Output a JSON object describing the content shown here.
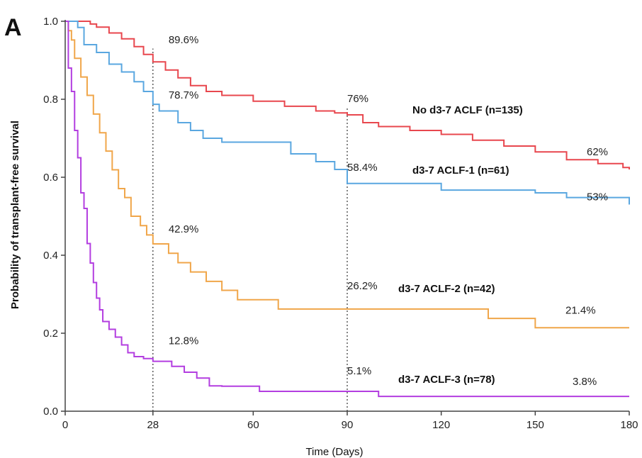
{
  "chart_data": {
    "type": "line",
    "panel_label": "A",
    "xlabel": "Time (Days)",
    "ylabel": "Probability of transplant-free survival",
    "xlim": [
      0,
      180
    ],
    "ylim": [
      0,
      1.0
    ],
    "x_ticks": [
      0,
      28,
      60,
      90,
      120,
      150,
      180
    ],
    "x_tick_labels": [
      "0",
      "28",
      "60",
      "90",
      "120",
      "150",
      "180"
    ],
    "y_ticks": [
      0,
      0.2,
      0.4,
      0.6,
      0.8,
      1.0
    ],
    "y_tick_labels": [
      "0.0",
      "0.2",
      "0.4",
      "0.6",
      "0.8",
      "1.0"
    ],
    "reference_lines_x": [
      28,
      90
    ],
    "series": [
      {
        "name": "No d3-7 ACLF (n=135)",
        "color": "#e8474e",
        "x": [
          0,
          8,
          10,
          14,
          18,
          22,
          25,
          28,
          32,
          36,
          40,
          45,
          50,
          60,
          70,
          80,
          86,
          90,
          95,
          100,
          110,
          120,
          130,
          140,
          150,
          160,
          170,
          178,
          180
        ],
        "y": [
          1.0,
          0.993,
          0.985,
          0.97,
          0.955,
          0.935,
          0.915,
          0.896,
          0.875,
          0.855,
          0.835,
          0.82,
          0.81,
          0.795,
          0.782,
          0.77,
          0.765,
          0.76,
          0.74,
          0.73,
          0.72,
          0.71,
          0.695,
          0.68,
          0.665,
          0.645,
          0.635,
          0.625,
          0.62
        ]
      },
      {
        "name": "d3-7 ACLF-1 (n=61)",
        "color": "#5aa7e0",
        "x": [
          0,
          4,
          6,
          10,
          14,
          18,
          22,
          25,
          28,
          30,
          36,
          40,
          44,
          50,
          60,
          68,
          72,
          80,
          86,
          90,
          100,
          110,
          120,
          130,
          140,
          150,
          155,
          160,
          170,
          178,
          180
        ],
        "y": [
          1.0,
          0.984,
          0.94,
          0.92,
          0.89,
          0.87,
          0.845,
          0.82,
          0.787,
          0.77,
          0.74,
          0.72,
          0.7,
          0.69,
          0.69,
          0.69,
          0.66,
          0.64,
          0.62,
          0.584,
          0.584,
          0.584,
          0.567,
          0.567,
          0.567,
          0.56,
          0.56,
          0.548,
          0.548,
          0.548,
          0.53
        ]
      },
      {
        "name": "d3-7 ACLF-2 (n=42)",
        "color": "#f0a64a",
        "x": [
          0,
          1,
          2,
          3,
          5,
          7,
          9,
          11,
          13,
          15,
          17,
          19,
          21,
          24,
          26,
          28,
          33,
          36,
          40,
          45,
          50,
          55,
          60,
          68,
          80,
          90,
          100,
          120,
          135,
          150,
          165,
          180
        ],
        "y": [
          1.0,
          0.976,
          0.952,
          0.905,
          0.857,
          0.81,
          0.762,
          0.714,
          0.667,
          0.619,
          0.571,
          0.548,
          0.5,
          0.476,
          0.452,
          0.429,
          0.405,
          0.381,
          0.357,
          0.333,
          0.31,
          0.286,
          0.286,
          0.262,
          0.262,
          0.262,
          0.262,
          0.262,
          0.238,
          0.214,
          0.214,
          0.214
        ]
      },
      {
        "name": "d3-7 ACLF-3 (n=78)",
        "color": "#b33ee0",
        "x": [
          0,
          1,
          2,
          3,
          4,
          5,
          6,
          7,
          8,
          9,
          10,
          11,
          12,
          14,
          16,
          18,
          20,
          22,
          25,
          28,
          34,
          38,
          42,
          46,
          50,
          62,
          72,
          90,
          100,
          120,
          150,
          180
        ],
        "y": [
          1.0,
          0.88,
          0.82,
          0.72,
          0.65,
          0.56,
          0.52,
          0.43,
          0.38,
          0.33,
          0.29,
          0.26,
          0.23,
          0.21,
          0.19,
          0.17,
          0.15,
          0.14,
          0.135,
          0.128,
          0.115,
          0.1,
          0.085,
          0.065,
          0.064,
          0.051,
          0.051,
          0.051,
          0.038,
          0.038,
          0.038,
          0.038
        ]
      }
    ],
    "annotations": [
      {
        "text": "89.6%",
        "x": 28,
        "y": 0.896,
        "color": "#222"
      },
      {
        "text": "78.7%",
        "x": 28,
        "y": 0.787,
        "color": "#222"
      },
      {
        "text": "42.9%",
        "x": 28,
        "y": 0.429,
        "color": "#222"
      },
      {
        "text": "12.8%",
        "x": 28,
        "y": 0.128,
        "color": "#222"
      },
      {
        "text": "76%",
        "x": 90,
        "y": 0.76,
        "color": "#222"
      },
      {
        "text": "58.4%",
        "x": 90,
        "y": 0.584,
        "color": "#222"
      },
      {
        "text": "26.2%",
        "x": 90,
        "y": 0.262,
        "color": "#222"
      },
      {
        "text": "5.1%",
        "x": 90,
        "y": 0.051,
        "color": "#222"
      },
      {
        "text": "62%",
        "x": 180,
        "y": 0.62,
        "color": "#222"
      },
      {
        "text": "53%",
        "x": 180,
        "y": 0.53,
        "color": "#222"
      },
      {
        "text": "21.4%",
        "x": 180,
        "y": 0.214,
        "color": "#222"
      },
      {
        "text": "3.8%",
        "x": 180,
        "y": 0.038,
        "color": "#222"
      }
    ],
    "legend_labels": [
      {
        "text": "No d3-7 ACLF (n=135)"
      },
      {
        "text": "d3-7 ACLF-1 (n=61)"
      },
      {
        "text": "d3-7 ACLF-2 (n=42)"
      },
      {
        "text": "d3-7 ACLF-3 (n=78)"
      }
    ]
  }
}
